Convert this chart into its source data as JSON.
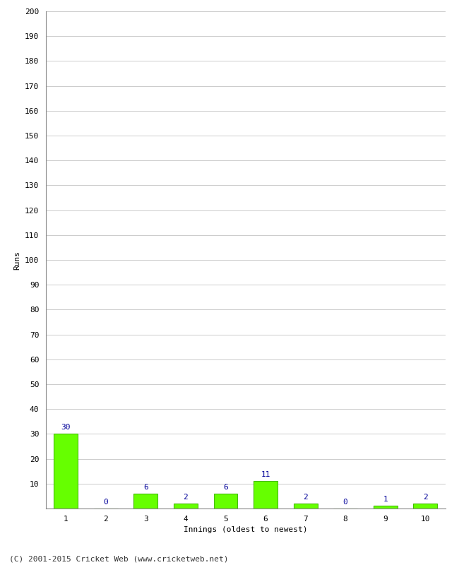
{
  "categories": [
    1,
    2,
    3,
    4,
    5,
    6,
    7,
    8,
    9,
    10
  ],
  "values": [
    30,
    0,
    6,
    2,
    6,
    11,
    2,
    0,
    1,
    2
  ],
  "bar_color": "#66ff00",
  "bar_edge_color": "#44bb00",
  "ylabel": "Runs",
  "xlabel": "Innings (oldest to newest)",
  "ylim": [
    0,
    200
  ],
  "yticks": [
    0,
    10,
    20,
    30,
    40,
    50,
    60,
    70,
    80,
    90,
    100,
    110,
    120,
    130,
    140,
    150,
    160,
    170,
    180,
    190,
    200
  ],
  "footer": "(C) 2001-2015 Cricket Web (www.cricketweb.net)",
  "label_color": "#000099",
  "background_color": "#ffffff",
  "grid_color": "#cccccc"
}
